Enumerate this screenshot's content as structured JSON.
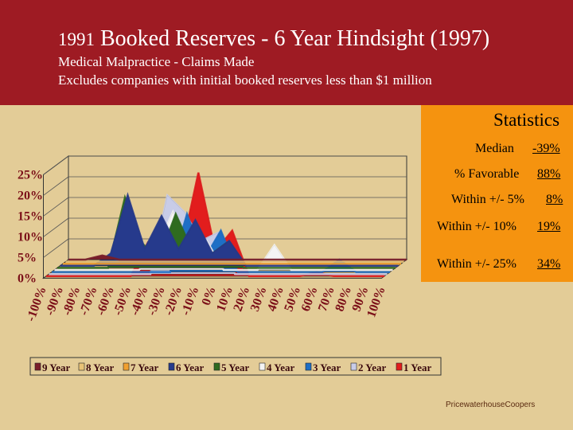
{
  "header": {
    "title_year": "1991",
    "title_rest": "Booked Reserves - 6 Year Hindsight (1997)",
    "subtitle1": "Medical Malpractice - Claims Made",
    "subtitle2": "Excludes companies with initial booked reserves less than $1 million"
  },
  "statistics": {
    "title": "Statistics",
    "rows": [
      {
        "label": "Median",
        "value": "-39%"
      },
      {
        "label": "% Favorable",
        "value": "88%"
      },
      {
        "label": "Within +/- 5%",
        "value": "8%"
      },
      {
        "label": "Within +/- 10%",
        "value": "19%"
      },
      {
        "label": "Within +/- 25%",
        "value": "34%"
      }
    ]
  },
  "footer": {
    "brand": "PricewaterhouseCoopers"
  },
  "chart_data": {
    "type": "area",
    "title": "",
    "xlabel": "",
    "ylabel": "",
    "ylim": [
      0,
      25
    ],
    "yticks": [
      "0%",
      "5%",
      "10%",
      "15%",
      "20%",
      "25%"
    ],
    "categories": [
      "-100%",
      "-90%",
      "-80%",
      "-70%",
      "-60%",
      "-50%",
      "-40%",
      "-30%",
      "-20%",
      "-10%",
      "0%",
      "10%",
      "20%",
      "30%",
      "40%",
      "50%",
      "60%",
      "70%",
      "80%",
      "90%",
      "100%"
    ],
    "legend_position": "bottom",
    "series": [
      {
        "name": "9 Year",
        "color": "#7a1e2a",
        "values": [
          0,
          0,
          1,
          0,
          0,
          0,
          0,
          0,
          0,
          0,
          0,
          0,
          0,
          0,
          0,
          0,
          0,
          0,
          0,
          0,
          0
        ]
      },
      {
        "name": "8 Year",
        "color": "#e8c277",
        "values": [
          0,
          0,
          0,
          0,
          0,
          0,
          0,
          0,
          0,
          0,
          0,
          0,
          0,
          0,
          0,
          0,
          0,
          0,
          0,
          0,
          0
        ]
      },
      {
        "name": "7 Year",
        "color": "#f0a030",
        "values": [
          0,
          0,
          0,
          0,
          0,
          0,
          0,
          0,
          0,
          0,
          0,
          0,
          0,
          0,
          0,
          0,
          0,
          0,
          0,
          0,
          0
        ]
      },
      {
        "name": "6 Year",
        "color": "#263a8c",
        "values": [
          0,
          0,
          0,
          3,
          17,
          4,
          12,
          4,
          11,
          3,
          6,
          0,
          0,
          0,
          0,
          0,
          0,
          0,
          0,
          0,
          0
        ]
      },
      {
        "name": "5 Year",
        "color": "#2f6b1f",
        "values": [
          0,
          0,
          0,
          0,
          17,
          6,
          2,
          13,
          4,
          3,
          6,
          0,
          0,
          0,
          0,
          0,
          0,
          0,
          0,
          0,
          0
        ]
      },
      {
        "name": "4 Year",
        "color": "#f4f4f4",
        "values": [
          0,
          0,
          0,
          0,
          0,
          0,
          5,
          14,
          3,
          7,
          0,
          0,
          0,
          6,
          0,
          0,
          0,
          0,
          0,
          0,
          0
        ]
      },
      {
        "name": "3 Year",
        "color": "#1e6fc6",
        "values": [
          0,
          0,
          0,
          0,
          0,
          0,
          0,
          0,
          14,
          3,
          10,
          0,
          0,
          0,
          0,
          0,
          0,
          3,
          0,
          0,
          0
        ]
      },
      {
        "name": "2 Year",
        "color": "#c8cce8",
        "values": [
          0,
          0,
          0,
          0,
          0,
          0,
          0,
          19,
          15,
          8,
          10,
          0,
          0,
          0,
          0,
          0,
          0,
          0,
          0,
          0,
          0
        ]
      },
      {
        "name": "1 Year",
        "color": "#e21d1d",
        "values": [
          0,
          0,
          0,
          0,
          0,
          0,
          8,
          1,
          6,
          25,
          6,
          11,
          0,
          0,
          0,
          0,
          1,
          0,
          0,
          0,
          0
        ]
      }
    ]
  }
}
